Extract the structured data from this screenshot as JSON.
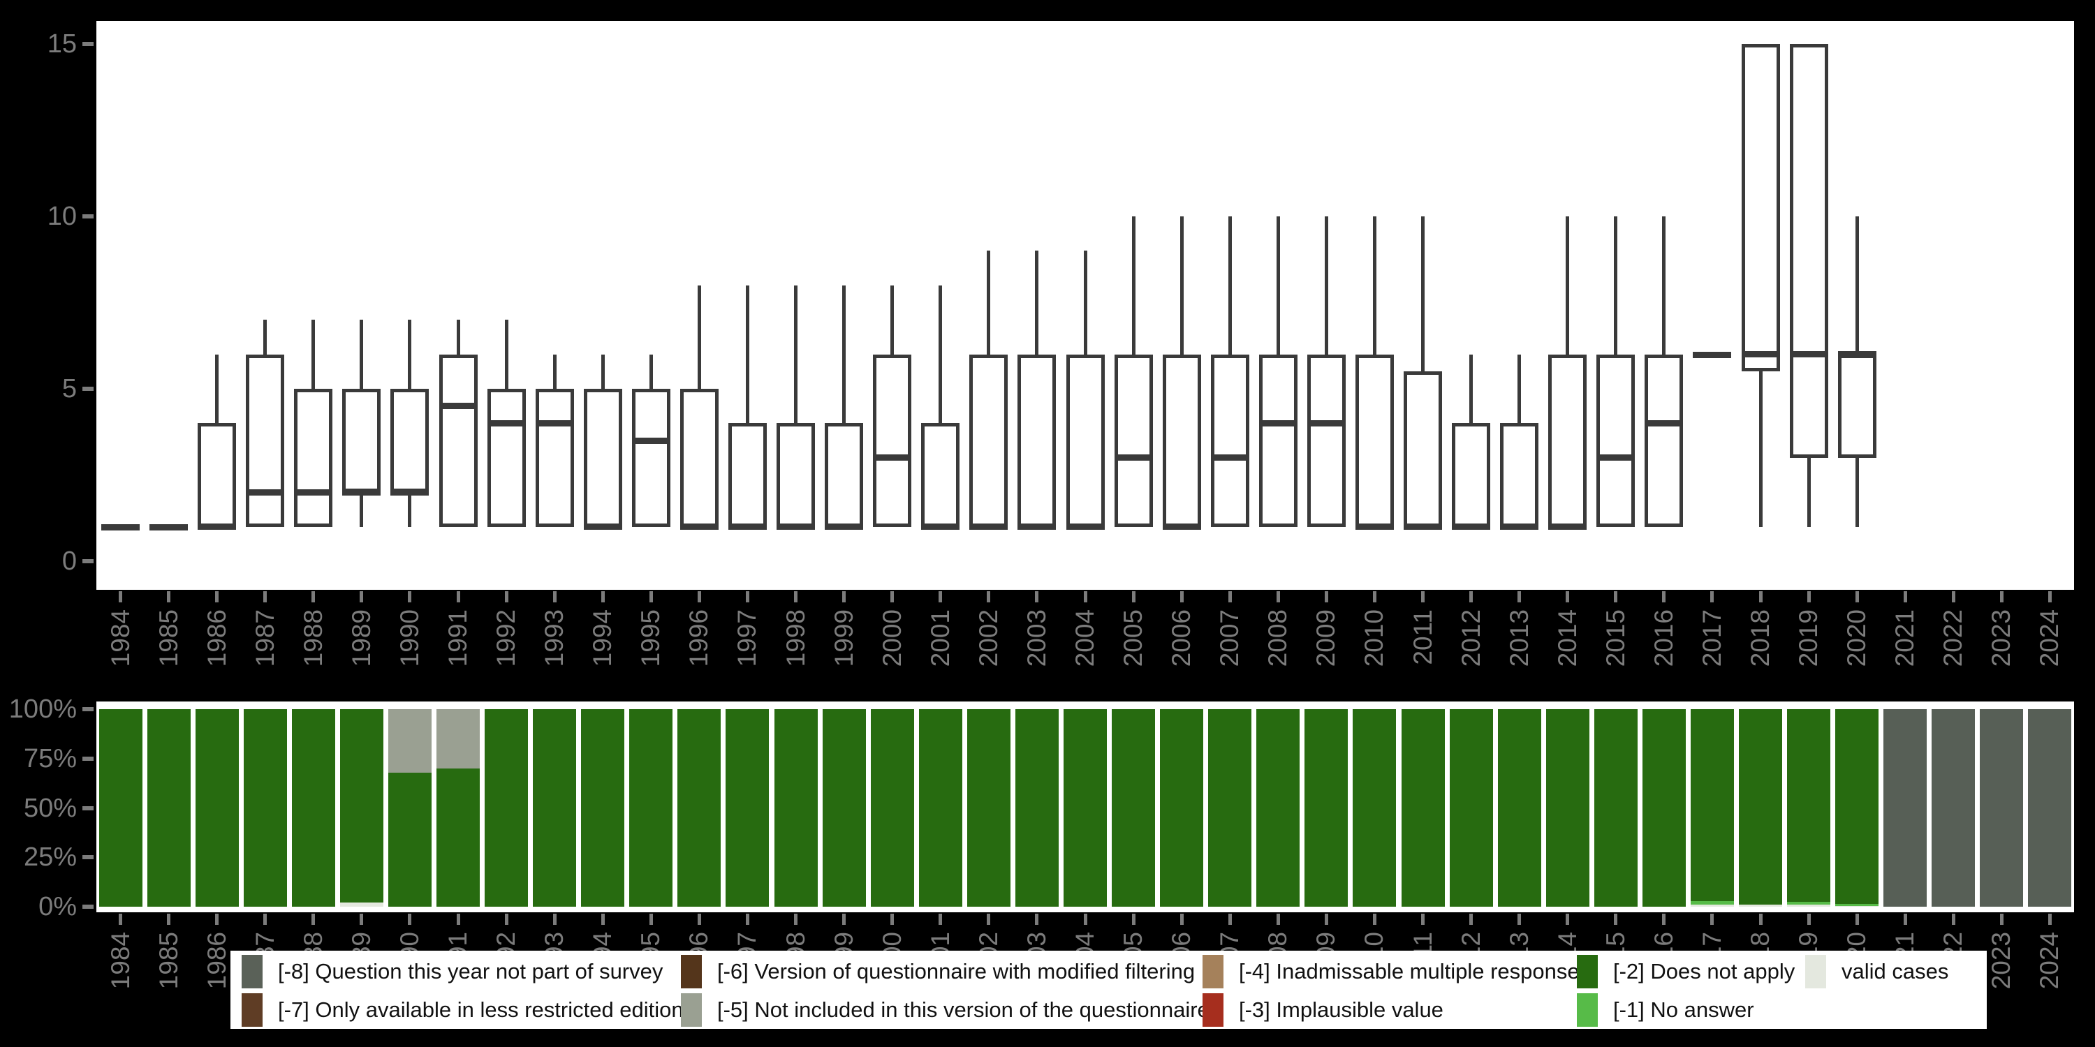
{
  "page": {
    "background": "#000000",
    "panel_background": "#ffffff",
    "axis_text_color": "#7c7c7c",
    "box_line_color": "#3a3a3a"
  },
  "chart_data": [
    {
      "type": "boxplot",
      "title": "",
      "xlabel": "",
      "ylabel": "",
      "ylim": [
        0,
        15
      ],
      "yticks": [
        0,
        5,
        10,
        15
      ],
      "grid": false,
      "categories": [
        "1984",
        "1985",
        "1986",
        "1987",
        "1988",
        "1989",
        "1990",
        "1991",
        "1992",
        "1993",
        "1994",
        "1995",
        "1996",
        "1997",
        "1998",
        "1999",
        "2000",
        "2001",
        "2002",
        "2003",
        "2004",
        "2005",
        "2006",
        "2007",
        "2008",
        "2009",
        "2010",
        "2011",
        "2012",
        "2013",
        "2014",
        "2015",
        "2016",
        "2017",
        "2018",
        "2019",
        "2020",
        "2021",
        "2022",
        "2023",
        "2024"
      ],
      "boxes": [
        {
          "year": "1984",
          "lo": 1,
          "q1": 1,
          "med": 1,
          "q3": 1,
          "hi": 1
        },
        {
          "year": "1985",
          "lo": 1,
          "q1": 1,
          "med": 1,
          "q3": 1,
          "hi": 1
        },
        {
          "year": "1986",
          "lo": 1,
          "q1": 1,
          "med": 1,
          "q3": 4,
          "hi": 6
        },
        {
          "year": "1987",
          "lo": 1,
          "q1": 1,
          "med": 2,
          "q3": 6,
          "hi": 7
        },
        {
          "year": "1988",
          "lo": 1,
          "q1": 1,
          "med": 2,
          "q3": 5,
          "hi": 7
        },
        {
          "year": "1989",
          "lo": 1,
          "q1": 2,
          "med": 2,
          "q3": 5,
          "hi": 7
        },
        {
          "year": "1990",
          "lo": 1,
          "q1": 2,
          "med": 2,
          "q3": 5,
          "hi": 7
        },
        {
          "year": "1991",
          "lo": 1,
          "q1": 1,
          "med": 4.5,
          "q3": 6,
          "hi": 7
        },
        {
          "year": "1992",
          "lo": 1,
          "q1": 1,
          "med": 4,
          "q3": 5,
          "hi": 7
        },
        {
          "year": "1993",
          "lo": 1,
          "q1": 1,
          "med": 4,
          "q3": 5,
          "hi": 6
        },
        {
          "year": "1994",
          "lo": 1,
          "q1": 1,
          "med": 1,
          "q3": 5,
          "hi": 6
        },
        {
          "year": "1995",
          "lo": 1,
          "q1": 1,
          "med": 3.5,
          "q3": 5,
          "hi": 6
        },
        {
          "year": "1996",
          "lo": 1,
          "q1": 1,
          "med": 1,
          "q3": 5,
          "hi": 8
        },
        {
          "year": "1997",
          "lo": 1,
          "q1": 1,
          "med": 1,
          "q3": 4,
          "hi": 8
        },
        {
          "year": "1998",
          "lo": 1,
          "q1": 1,
          "med": 1,
          "q3": 4,
          "hi": 8
        },
        {
          "year": "1999",
          "lo": 1,
          "q1": 1,
          "med": 1,
          "q3": 4,
          "hi": 8
        },
        {
          "year": "2000",
          "lo": 1,
          "q1": 1,
          "med": 3,
          "q3": 6,
          "hi": 8
        },
        {
          "year": "2001",
          "lo": 1,
          "q1": 1,
          "med": 1,
          "q3": 4,
          "hi": 8
        },
        {
          "year": "2002",
          "lo": 1,
          "q1": 1,
          "med": 1,
          "q3": 6,
          "hi": 9
        },
        {
          "year": "2003",
          "lo": 1,
          "q1": 1,
          "med": 1,
          "q3": 6,
          "hi": 9
        },
        {
          "year": "2004",
          "lo": 1,
          "q1": 1,
          "med": 1,
          "q3": 6,
          "hi": 9
        },
        {
          "year": "2005",
          "lo": 1,
          "q1": 1,
          "med": 3,
          "q3": 6,
          "hi": 10
        },
        {
          "year": "2006",
          "lo": 1,
          "q1": 1,
          "med": 1,
          "q3": 6,
          "hi": 10
        },
        {
          "year": "2007",
          "lo": 1,
          "q1": 1,
          "med": 3,
          "q3": 6,
          "hi": 10
        },
        {
          "year": "2008",
          "lo": 1,
          "q1": 1,
          "med": 4,
          "q3": 6,
          "hi": 10
        },
        {
          "year": "2009",
          "lo": 1,
          "q1": 1,
          "med": 4,
          "q3": 6,
          "hi": 10
        },
        {
          "year": "2010",
          "lo": 1,
          "q1": 1,
          "med": 1,
          "q3": 6,
          "hi": 10
        },
        {
          "year": "2011",
          "lo": 1,
          "q1": 1,
          "med": 1,
          "q3": 5.5,
          "hi": 10
        },
        {
          "year": "2012",
          "lo": 1,
          "q1": 1,
          "med": 1,
          "q3": 4,
          "hi": 6
        },
        {
          "year": "2013",
          "lo": 1,
          "q1": 1,
          "med": 1,
          "q3": 4,
          "hi": 6
        },
        {
          "year": "2014",
          "lo": 1,
          "q1": 1,
          "med": 1,
          "q3": 6,
          "hi": 10
        },
        {
          "year": "2015",
          "lo": 1,
          "q1": 1,
          "med": 3,
          "q3": 6,
          "hi": 10
        },
        {
          "year": "2016",
          "lo": 1,
          "q1": 1,
          "med": 4,
          "q3": 6,
          "hi": 10
        },
        {
          "year": "2017",
          "lo": 6,
          "q1": 6,
          "med": 6,
          "q3": 6,
          "hi": 6
        },
        {
          "year": "2018",
          "lo": 1,
          "q1": 5.5,
          "med": 6,
          "q3": 15,
          "hi": 15
        },
        {
          "year": "2019",
          "lo": 1,
          "q1": 3,
          "med": 6,
          "q3": 15,
          "hi": 15
        },
        {
          "year": "2020",
          "lo": 1,
          "q1": 3,
          "med": 6,
          "q3": 6,
          "hi": 10
        },
        {
          "year": "2021",
          "lo": null,
          "q1": null,
          "med": null,
          "q3": null,
          "hi": null
        },
        {
          "year": "2022",
          "lo": null,
          "q1": null,
          "med": null,
          "q3": null,
          "hi": null
        },
        {
          "year": "2023",
          "lo": null,
          "q1": null,
          "med": null,
          "q3": null,
          "hi": null
        },
        {
          "year": "2024",
          "lo": null,
          "q1": null,
          "med": null,
          "q3": null,
          "hi": null
        }
      ]
    },
    {
      "type": "bar",
      "subtype": "stacked-percentage",
      "title": "",
      "ylim": [
        0,
        100
      ],
      "yticks_labels": [
        "100%",
        "75%",
        "50%",
        "25%",
        "0%"
      ],
      "yticks_values": [
        100,
        75,
        50,
        25,
        0
      ],
      "grid": false,
      "categories": [
        "1984",
        "1985",
        "1986",
        "1987",
        "1988",
        "1989",
        "1990",
        "1991",
        "1992",
        "1993",
        "1994",
        "1995",
        "1996",
        "1997",
        "1998",
        "1999",
        "2000",
        "2001",
        "2002",
        "2003",
        "2004",
        "2005",
        "2006",
        "2007",
        "2008",
        "2009",
        "2010",
        "2011",
        "2012",
        "2013",
        "2014",
        "2015",
        "2016",
        "2017",
        "2018",
        "2019",
        "2020",
        "2021",
        "2022",
        "2023",
        "2024"
      ],
      "stack_order_bottom_up": [
        "valid_cases",
        "no_answer",
        "does_not_apply",
        "not_included_version",
        "not_part_of_survey"
      ],
      "series": [
        {
          "name": "valid_cases",
          "color": "#e4e8df",
          "values": [
            0,
            0,
            0,
            0,
            0,
            2,
            0,
            0,
            0,
            0,
            0,
            0,
            0,
            0,
            0,
            0,
            0,
            0,
            0,
            0,
            0,
            0,
            0,
            0,
            0,
            0,
            0,
            0,
            0,
            0,
            0,
            0,
            0,
            1,
            1,
            1,
            0.5,
            0,
            0,
            0,
            0
          ]
        },
        {
          "name": "no_answer",
          "color": "#57bb48",
          "values": [
            0,
            0,
            0,
            0,
            0,
            0,
            0,
            0,
            0,
            0,
            0,
            0,
            0,
            0,
            0,
            0,
            0,
            0,
            0,
            0,
            0,
            0,
            0,
            0,
            0,
            0,
            0,
            0,
            0,
            0,
            0,
            0,
            0,
            2,
            0,
            1.5,
            1,
            0,
            0,
            0,
            0
          ]
        },
        {
          "name": "does_not_apply",
          "color": "#276b10",
          "values": [
            100,
            100,
            100,
            100,
            100,
            98,
            68,
            70,
            100,
            100,
            100,
            100,
            100,
            100,
            100,
            100,
            100,
            100,
            100,
            100,
            100,
            100,
            100,
            100,
            100,
            100,
            100,
            100,
            100,
            100,
            100,
            100,
            100,
            97,
            99,
            97.5,
            98.5,
            0,
            0,
            0,
            0
          ]
        },
        {
          "name": "not_included_version",
          "color": "#9aa092",
          "values": [
            0,
            0,
            0,
            0,
            0,
            0,
            32,
            30,
            0,
            0,
            0,
            0,
            0,
            0,
            0,
            0,
            0,
            0,
            0,
            0,
            0,
            0,
            0,
            0,
            0,
            0,
            0,
            0,
            0,
            0,
            0,
            0,
            0,
            0,
            0,
            0,
            0,
            0,
            0,
            0,
            0
          ]
        },
        {
          "name": "not_part_of_survey",
          "color": "#575f56",
          "values": [
            0,
            0,
            0,
            0,
            0,
            0,
            0,
            0,
            0,
            0,
            0,
            0,
            0,
            0,
            0,
            0,
            0,
            0,
            0,
            0,
            0,
            0,
            0,
            0,
            0,
            0,
            0,
            0,
            0,
            0,
            0,
            0,
            0,
            0,
            0,
            0,
            0,
            100,
            100,
            100,
            100
          ]
        }
      ]
    }
  ],
  "top_axis": {
    "tick_labels": [
      "0",
      "5",
      "10",
      "15"
    ]
  },
  "legend": {
    "row1": [
      {
        "code": "-8",
        "label": "[-8] Question this year not part of survey",
        "color": "#5a6158"
      },
      {
        "code": "-6",
        "label": "[-6] Version of questionnaire with modified filtering",
        "color": "#54351b"
      },
      {
        "code": "-4",
        "label": "[-4] Inadmissable multiple response",
        "color": "#a5815b"
      },
      {
        "code": "-2",
        "label": "[-2] Does not apply",
        "color": "#276b10"
      },
      {
        "code": "valid",
        "label": "valid cases",
        "color": "#e4e8df"
      }
    ],
    "row2": [
      {
        "code": "-7",
        "label": "[-7] Only available in less restricted edition",
        "color": "#5f3d25"
      },
      {
        "code": "-5",
        "label": "[-5] Not included in this version of the questionnaire",
        "color": "#9aa092"
      },
      {
        "code": "-3",
        "label": "[-3] Implausible value",
        "color": "#a62e1e"
      },
      {
        "code": "-1",
        "label": "[-1] No answer",
        "color": "#57bb48"
      }
    ]
  }
}
